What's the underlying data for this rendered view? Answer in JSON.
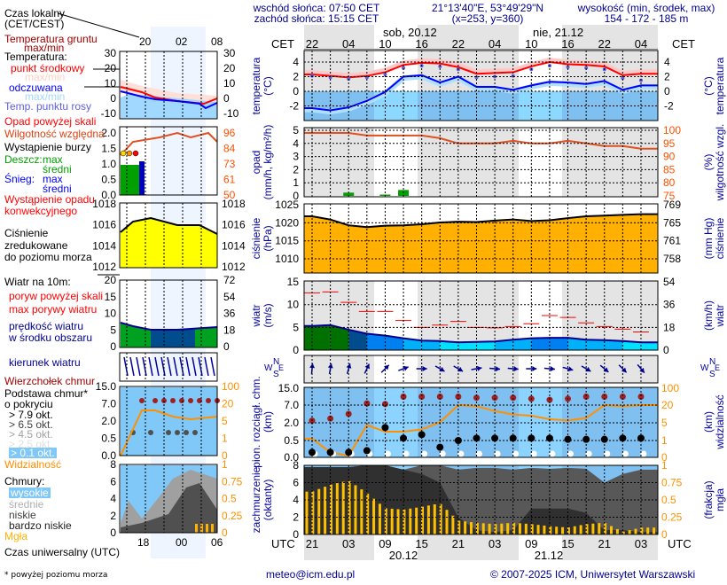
{
  "header": {
    "sunrise": "wschód słońca: 07:50 CET",
    "sunset": "zachód słońca: 15:15 CET",
    "coords": "21°13'40\"E, 53°49'29\"N",
    "grid": "(x=253,  y=360)",
    "elev_title": "wysokość (min, środek, max)",
    "elev_values": "154 - 172 - 185 m"
  },
  "top_axis": {
    "zone": "CET",
    "ticks": [
      "22",
      "04",
      "10",
      "16",
      "22",
      "04",
      "10",
      "16",
      "22",
      "04"
    ],
    "days": [
      "sob, 20.12",
      "nie, 21.12"
    ]
  },
  "bottom_axis": {
    "zone": "UTC",
    "ticks": [
      "21",
      "03",
      "09",
      "15",
      "21",
      "03",
      "09",
      "15",
      "21",
      "03"
    ],
    "dates": [
      "20.12",
      "21.12"
    ]
  },
  "axis_titles": {
    "temp_left": [
      "temperatura",
      "(°C)"
    ],
    "temp_right": [
      "(°C)",
      "temperatura"
    ],
    "precip_left": [
      "opad",
      "(mm/h, kg/m²/h)"
    ],
    "precip_right": [
      "(%)",
      "wilgotność wzgl."
    ],
    "press_left": [
      "ciśnienie",
      "(hPa)"
    ],
    "press_right": [
      "(mm Hg)",
      "ciśnienie"
    ],
    "wind_left": [
      "wiatr",
      "(m/s)"
    ],
    "wind_right": [
      "(km/h)",
      "wiatr"
    ],
    "cloudbase_left": [
      "pion. rozciągł. chm.",
      "(km)"
    ],
    "cloudbase_right": [
      "(km)",
      "widzialność"
    ],
    "clouds_left": [
      "zachmurzenie",
      "(oktanty)"
    ],
    "clouds_right": [
      "(frakcja)",
      "mgła"
    ],
    "compass": {
      "n": "N",
      "w": "W",
      "e": "E",
      "s": "S"
    }
  },
  "ticks": {
    "temp": [
      "4",
      "2",
      "0",
      "-2"
    ],
    "precip": [
      "5",
      "4",
      "3",
      "2",
      "1",
      "0"
    ],
    "humidity": [
      "100",
      "95",
      "90",
      "85",
      "80",
      "75"
    ],
    "press": [
      "1025",
      "1020",
      "1015",
      "1010"
    ],
    "press_mmhg": [
      "769",
      "765",
      "761",
      "758"
    ],
    "wind": [
      "15",
      "10",
      "5",
      "0"
    ],
    "wind_kmh": [
      "54",
      "36",
      "18",
      "0"
    ],
    "cloudbase": [
      "15.0",
      "7.0",
      "2.0",
      "0.5",
      "0.0"
    ],
    "visibility": [
      "100",
      "20",
      "5",
      "1",
      "0"
    ],
    "clouds": [
      "8",
      "6",
      "4",
      "2",
      "0"
    ],
    "fog": [
      "1",
      "0.75",
      "0.5",
      "0.25",
      "0"
    ]
  },
  "colors": {
    "temperature": "#ff0000",
    "feels_like": "#0000ff",
    "dew_point": "#6060e0",
    "humidity": "#e05020",
    "rain": "#00a000",
    "pressure_fill": "#ffa000",
    "gust": "#ff0000",
    "wind": "#000090",
    "cloud_top": "#a02020",
    "visibility": "#ff9000",
    "fog": "#ffc000",
    "sky": "#80c8f8"
  },
  "chart_data": {
    "type": "line",
    "x": [
      "19.12 21:00",
      "20.12 00:00",
      "20.12 03:00",
      "20.12 06:00",
      "20.12 09:00",
      "20.12 12:00",
      "20.12 15:00",
      "20.12 18:00",
      "20.12 21:00",
      "21.12 00:00",
      "21.12 03:00",
      "21.12 06:00",
      "21.12 09:00",
      "21.12 12:00",
      "21.12 15:00",
      "21.12 18:00",
      "21.12 21:00",
      "22.12 00:00",
      "22.12 03:00"
    ],
    "x_unit": "UTC",
    "series": {
      "temperature_c": [
        2.3,
        2.1,
        1.9,
        2.1,
        2.6,
        3.6,
        3.9,
        3.8,
        3.3,
        2.4,
        2.5,
        2.6,
        3.4,
        4.0,
        3.7,
        3.6,
        3.4,
        2.2,
        2.4
      ],
      "feels_like_c": [
        -2.3,
        -2.6,
        -2.2,
        -1.3,
        -0.1,
        2.0,
        2.2,
        1.2,
        2.0,
        0.6,
        0.6,
        0.2,
        0.8,
        1.3,
        1.2,
        1.0,
        1.4,
        0.2,
        0.8
      ],
      "dew_point_c": [
        2.1,
        1.9,
        1.7,
        1.9,
        2.3,
        3.2,
        3.5,
        3.4,
        3.0,
        1.9,
        2.0,
        2.1,
        3.0,
        3.5,
        3.3,
        3.2,
        3.0,
        1.8,
        1.5
      ],
      "humidity_pct": [
        99,
        99,
        99,
        98,
        98,
        98,
        98,
        97,
        95,
        95,
        95,
        96,
        95,
        95,
        96,
        95,
        94,
        94,
        93
      ],
      "precip_mm_h": [
        0,
        0,
        0.25,
        0,
        0.1,
        0.45,
        0,
        0,
        0,
        0,
        0,
        0,
        0,
        0,
        0,
        0,
        0,
        0,
        0
      ],
      "pressure_hpa": [
        1021.8,
        1020.9,
        1019.3,
        1018.8,
        1019.2,
        1019.3,
        1019.6,
        1020.1,
        1020.3,
        1020.2,
        1020.6,
        1020.9,
        1020.5,
        1020.7,
        1021.3,
        1021.8,
        1022.0,
        1022.2,
        1022.4
      ],
      "wind_ms": [
        5.3,
        5.5,
        4.5,
        3.6,
        3.2,
        2.6,
        2.1,
        2.0,
        1.7,
        1.8,
        1.9,
        2.3,
        2.6,
        2.7,
        2.7,
        2.3,
        2.2,
        2.0,
        1.7
      ],
      "gust_ms": [
        12.6,
        12.8,
        10.5,
        8.5,
        8.5,
        6.5,
        5.0,
        5.5,
        6.3,
        5.0,
        4.9,
        5.2,
        5.8,
        7.6,
        7.2,
        6.0,
        5.2,
        4.6,
        4.0
      ],
      "wind_dir_deg": [
        185,
        190,
        195,
        205,
        225,
        250,
        270,
        300,
        300,
        260,
        275,
        275,
        270,
        275,
        285,
        300,
        310,
        315,
        320
      ],
      "cloud_top_km": [
        2.6,
        3.2,
        4.5,
        7.8,
        7.5,
        11,
        11,
        11,
        11,
        10.5,
        10.5,
        10.5,
        10,
        9.5,
        10,
        11,
        11,
        11,
        11
      ],
      "cloud_base_km": [
        0.15,
        0.15,
        0.15,
        0.2,
        1.6,
        0.7,
        1.0,
        0.3,
        0.5,
        0.7,
        0.7,
        0.7,
        0.7,
        0.7,
        0.6,
        0.6,
        0.6,
        0.7,
        0.7
      ],
      "visibility_km": [
        1.4,
        0.3,
        0.1,
        4.5,
        3,
        3,
        3.5,
        5.5,
        20,
        19,
        15,
        12,
        11,
        8,
        7,
        9,
        20,
        19,
        20
      ],
      "cloud_total_okt": [
        7.8,
        7.8,
        7.8,
        8,
        8,
        7.5,
        8,
        8,
        7.5,
        7.7,
        7.7,
        7.5,
        7.7,
        7.6,
        7.7,
        7.6,
        6,
        7,
        7.5
      ],
      "cloud_very_low_okt": [
        7.8,
        7.8,
        7.8,
        8,
        8,
        7.5,
        7,
        6,
        2,
        0.5,
        0.3,
        0.5,
        3,
        3,
        3,
        2.5,
        0.5,
        0.5,
        0.3
      ],
      "fog_fraction": [
        0.62,
        0.72,
        0.78,
        0.6,
        0.38,
        0.36,
        0.4,
        0.45,
        0.2,
        0.17,
        0.15,
        0.17,
        0.15,
        0.12,
        0.1,
        0.15,
        0.17,
        0.04,
        0.1
      ]
    }
  },
  "legend": {
    "local_time": "Czas lokalny",
    "local_time_zone": "(CET/CEST)",
    "local_ticks": [
      "20",
      "02",
      "08"
    ],
    "ground_temp": "Temperatura gruntu",
    "ground_maxmin": "max/min",
    "temperature": "Temperatura:",
    "mid_point": "punkt środkowy",
    "temp_maxmin": "max/min",
    "feels": "odczuwana",
    "feels_maxmin": "max/min",
    "dew": "Temp. punktu rosy",
    "temp_ticks": [
      "30",
      "20",
      "10",
      "0",
      "-10"
    ],
    "precip_over": "Opad powyżej skali",
    "humidity": "Wilgotność względna",
    "storm": "Wystąpienie burzy",
    "rain": "Deszcz:",
    "rain_max": "max",
    "rain_avg": "średni",
    "snow": "Śnieg:",
    "snow_max": "max",
    "snow_avg": "średni",
    "convective1": "Wystąpienie opadu",
    "convective2": "konwekcyjnego",
    "precip_ticks": [
      "2.0",
      "1.5",
      "1.0",
      "0.5",
      "0.0"
    ],
    "hum_ticks": [
      "96",
      "84",
      "73",
      "61",
      "50"
    ],
    "pressure1": "Ciśnienie",
    "pressure2": "zredukowane",
    "pressure3": "do poziomu morza",
    "press_ticks": [
      "1018",
      "1016",
      "1014",
      "1012"
    ],
    "wind_title": "Wiatr na 10m:",
    "gust_over": "poryw powyżej skali",
    "gust_max": "max porywy wiatru",
    "wind_speed1": "prędkość wiatru",
    "wind_speed2": "w środku obszaru",
    "wind_ticks": [
      "20",
      "15",
      "10",
      "5",
      "0"
    ],
    "wind_kmh_ticks": [
      "72",
      "54",
      "36",
      "18",
      "0"
    ],
    "wind_dir": "kierunek wiatru",
    "cloud_top": "Wierzchołek chmur",
    "cloud_base1": "Podstawa chmur*",
    "cloud_base2": "o pokryciu",
    "okt": [
      "> 7.9 okt.",
      "> 6.5 okt.",
      "> 4.5 okt.",
      "> 2.5 okt.",
      "> 0.1 okt."
    ],
    "cb_ticks": [
      "15.0",
      "7.0",
      "2.0",
      "0.5",
      "0.0"
    ],
    "vis_ticks": [
      "100",
      "20",
      "5",
      "1",
      "0"
    ],
    "visibility": "Widzialność",
    "clouds": "Chmury:",
    "high": "wysokie",
    "medium": "średnie",
    "low": "niskie",
    "very_low": "bardzo niskie",
    "fog": "Mgła",
    "cl_ticks": [
      "8",
      "6",
      "4",
      "2",
      "0"
    ],
    "fog_ticks": [
      "1",
      "0.75",
      "0.5",
      "0.25",
      "0"
    ],
    "utc_ticks": [
      "18",
      "00",
      "06"
    ],
    "utc": "Czas uniwersalny (UTC)",
    "footnote": "* powyżej poziomu morza"
  },
  "footer": {
    "email": "meteo@icm.edu.pl",
    "copyright": "© 2007-2025 ICM, Uniwersytet Warszawski"
  }
}
